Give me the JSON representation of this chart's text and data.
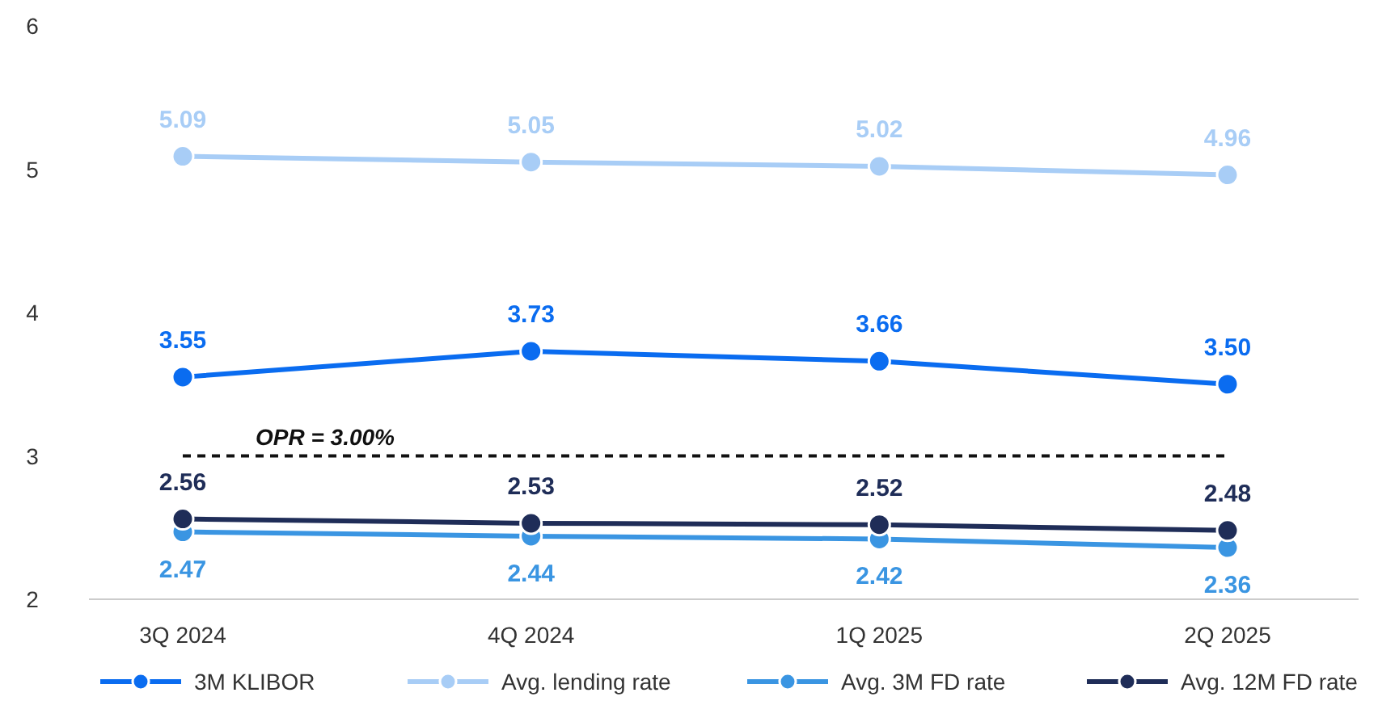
{
  "chart_data": {
    "type": "line",
    "categories": [
      "3Q 2024",
      "4Q 2024",
      "1Q 2025",
      "2Q 2025"
    ],
    "series": [
      {
        "name": "3M KLIBOR",
        "color": "#0a6cf0",
        "values": [
          3.55,
          3.73,
          3.66,
          3.5
        ],
        "value_labels": [
          "3.55",
          "3.73",
          "3.66",
          "3.50"
        ]
      },
      {
        "name": "Avg. lending rate",
        "color": "#a8cdf6",
        "values": [
          5.09,
          5.05,
          5.02,
          4.96
        ],
        "value_labels": [
          "5.09",
          "5.05",
          "5.02",
          "4.96"
        ]
      },
      {
        "name": "Avg. 3M FD rate",
        "color": "#3a95e2",
        "values": [
          2.47,
          2.44,
          2.42,
          2.36
        ],
        "value_labels": [
          "2.47",
          "2.44",
          "2.42",
          "2.36"
        ]
      },
      {
        "name": "Avg. 12M FD rate",
        "color": "#1f2d58",
        "values": [
          2.56,
          2.53,
          2.52,
          2.48
        ],
        "value_labels": [
          "2.56",
          "2.53",
          "2.52",
          "2.48"
        ]
      }
    ],
    "ylim": [
      2,
      6
    ],
    "yticks": [
      2,
      3,
      4,
      5,
      6
    ],
    "grid": false,
    "legend": "bottom",
    "marker": "circle",
    "line_style": "solid",
    "ref_lines": [
      {
        "axis": "y",
        "value": 3,
        "label": "OPR = 3.00%",
        "color": "#111111",
        "line_style": "dashed"
      }
    ]
  }
}
